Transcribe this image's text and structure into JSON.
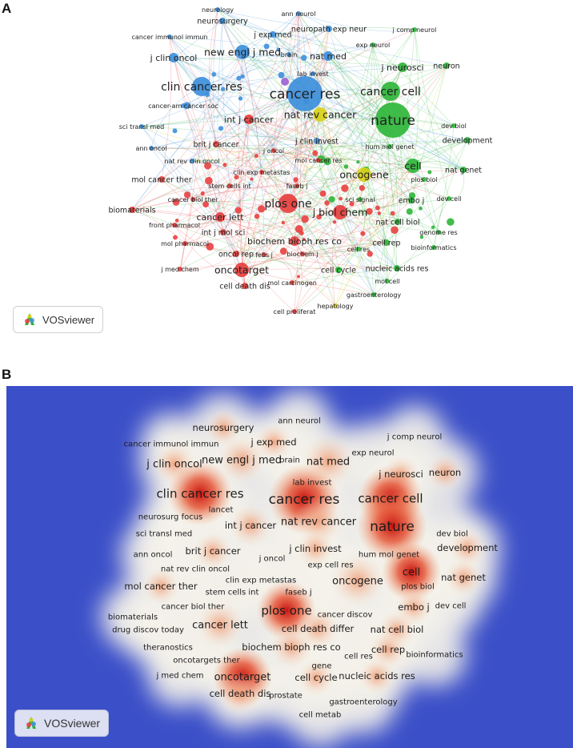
{
  "panel_a": {
    "label": "A",
    "logo_text": "VOSviewer",
    "clusters": {
      "red": "#e8403f",
      "green": "#2fb63a",
      "blue": "#3d8fdb",
      "yellow": "#d7d119",
      "purple": "#a46fd6"
    },
    "nodes": [
      {
        "label": "neurology",
        "c": "blue",
        "s": 2
      },
      {
        "label": "ann neurol",
        "c": "blue",
        "s": 2
      },
      {
        "label": "neurosurgery",
        "c": "blue",
        "s": 3
      },
      {
        "label": "j comp neurol",
        "c": "green",
        "s": 2
      },
      {
        "label": "cancer immunol immun",
        "c": "blue",
        "s": 2
      },
      {
        "label": "j exp med",
        "c": "blue",
        "s": 3
      },
      {
        "label": "neuropath exp neur",
        "c": "blue",
        "s": 3
      },
      {
        "label": "exp neurol",
        "c": "green",
        "s": 2
      },
      {
        "label": "new engl j med",
        "c": "blue",
        "s": 5
      },
      {
        "label": "brain",
        "c": "blue",
        "s": 2
      },
      {
        "label": "nat med",
        "c": "blue",
        "s": 4
      },
      {
        "label": "j clin oncol",
        "c": "blue",
        "s": 4
      },
      {
        "label": "j neurosci",
        "c": "green",
        "s": 4
      },
      {
        "label": "neuron",
        "c": "green",
        "s": 3
      },
      {
        "label": "lab invest",
        "c": "blue",
        "s": 2
      },
      {
        "label": "clin cancer res",
        "c": "blue",
        "s": 6
      },
      {
        "label": "cancer res",
        "c": "blue",
        "s": 8
      },
      {
        "label": "cancer cell",
        "c": "green",
        "s": 6
      },
      {
        "label": "cancer-am cancer soc",
        "c": "blue",
        "s": 2
      },
      {
        "label": "int j cancer",
        "c": "red",
        "s": 4
      },
      {
        "label": "nat rev cancer",
        "c": "yellow",
        "s": 5
      },
      {
        "label": "nature",
        "c": "green",
        "s": 8
      },
      {
        "label": "sci transl med",
        "c": "blue",
        "s": 2
      },
      {
        "label": "dev biol",
        "c": "green",
        "s": 2
      },
      {
        "label": "j clin invest",
        "c": "blue",
        "s": 3
      },
      {
        "label": "hum mol genet",
        "c": "green",
        "s": 2
      },
      {
        "label": "development",
        "c": "green",
        "s": 3
      },
      {
        "label": "ann oncol",
        "c": "blue",
        "s": 2
      },
      {
        "label": "brit j cancer",
        "c": "red",
        "s": 3
      },
      {
        "label": "j oncol",
        "c": "red",
        "s": 2
      },
      {
        "label": "nat rev clin oncol",
        "c": "blue",
        "s": 2
      },
      {
        "label": "mol cancer res",
        "c": "red",
        "s": 2
      },
      {
        "label": "oncogene",
        "c": "yellow",
        "s": 5
      },
      {
        "label": "cell",
        "c": "green",
        "s": 5
      },
      {
        "label": "nat genet",
        "c": "green",
        "s": 3
      },
      {
        "label": "clin exp metastas",
        "c": "red",
        "s": 2
      },
      {
        "label": "plos biol",
        "c": "green",
        "s": 2
      },
      {
        "label": "mol cancer ther",
        "c": "red",
        "s": 3
      },
      {
        "label": "stem cells int",
        "c": "red",
        "s": 2
      },
      {
        "label": "faseb j",
        "c": "red",
        "s": 2
      },
      {
        "label": "sci signal",
        "c": "green",
        "s": 2
      },
      {
        "label": "embo j",
        "c": "green",
        "s": 3
      },
      {
        "label": "dev cell",
        "c": "green",
        "s": 2
      },
      {
        "label": "cancer biol ther",
        "c": "red",
        "s": 2
      },
      {
        "label": "plos one",
        "c": "red",
        "s": 6
      },
      {
        "label": "j biol chem",
        "c": "red",
        "s": 5
      },
      {
        "label": "biomaterials",
        "c": "red",
        "s": 3
      },
      {
        "label": "cancer lett",
        "c": "red",
        "s": 4
      },
      {
        "label": "front pharmacol",
        "c": "red",
        "s": 2
      },
      {
        "label": "nat cell biol",
        "c": "green",
        "s": 3
      },
      {
        "label": "genome res",
        "c": "green",
        "s": 2
      },
      {
        "label": "int j mol sci",
        "c": "red",
        "s": 3
      },
      {
        "label": "cell rep",
        "c": "green",
        "s": 3
      },
      {
        "label": "mol pharmacol",
        "c": "red",
        "s": 2
      },
      {
        "label": "biochem bioph res co",
        "c": "red",
        "s": 4
      },
      {
        "label": "bioinformatics",
        "c": "green",
        "s": 2
      },
      {
        "label": "cell res",
        "c": "green",
        "s": 2
      },
      {
        "label": "oncol rep",
        "c": "red",
        "s": 3
      },
      {
        "label": "febs j",
        "c": "red",
        "s": 2
      },
      {
        "label": "biochem j",
        "c": "red",
        "s": 2
      },
      {
        "label": "j med chem",
        "c": "red",
        "s": 2
      },
      {
        "label": "oncotarget",
        "c": "red",
        "s": 5
      },
      {
        "label": "nucleic acids res",
        "c": "green",
        "s": 3
      },
      {
        "label": "cell cycle",
        "c": "green",
        "s": 3
      },
      {
        "label": "cell death dis",
        "c": "red",
        "s": 3
      },
      {
        "label": "mol carcinogen",
        "c": "red",
        "s": 2
      },
      {
        "label": "mol cell",
        "c": "green",
        "s": 2
      },
      {
        "label": "gastroenterology",
        "c": "green",
        "s": 2
      },
      {
        "label": "hepatology",
        "c": "yellow",
        "s": 2
      },
      {
        "label": "cell proliferat",
        "c": "red",
        "s": 2
      }
    ]
  },
  "panel_b": {
    "label": "B",
    "logo_text": "VOSviewer",
    "colors": {
      "background": "#3b4fc8",
      "hot": "#c9140e",
      "warm": "#f3a97e",
      "cool": "#f6f4e8"
    },
    "items": [
      {
        "label": "neurosurgery",
        "w": 0.4,
        "s": 3
      },
      {
        "label": "ann neurol",
        "w": 0.2,
        "s": 2
      },
      {
        "label": "cancer immunol immun",
        "w": 0.2,
        "s": 2
      },
      {
        "label": "j exp med",
        "w": 0.4,
        "s": 3
      },
      {
        "label": "j comp neurol",
        "w": 0.2,
        "s": 2
      },
      {
        "label": "exp neurol",
        "w": 0.2,
        "s": 2
      },
      {
        "label": "j clin oncol",
        "w": 0.5,
        "s": 4
      },
      {
        "label": "new engl j med",
        "w": 0.6,
        "s": 4
      },
      {
        "label": "brain",
        "w": 0.3,
        "s": 2
      },
      {
        "label": "nat med",
        "w": 0.7,
        "s": 4
      },
      {
        "label": "j neurosci",
        "w": 0.4,
        "s": 3
      },
      {
        "label": "neuron",
        "w": 0.4,
        "s": 3
      },
      {
        "label": "lab invest",
        "w": 0.3,
        "s": 2
      },
      {
        "label": "clin cancer res",
        "w": 0.9,
        "s": 5
      },
      {
        "label": "cancer res",
        "w": 1.0,
        "s": 6
      },
      {
        "label": "cancer cell",
        "w": 0.9,
        "s": 5
      },
      {
        "label": "lancet",
        "w": 0.3,
        "s": 2
      },
      {
        "label": "neurosurg focus",
        "w": 0.2,
        "s": 2
      },
      {
        "label": "int j cancer",
        "w": 0.5,
        "s": 3
      },
      {
        "label": "nat rev cancer",
        "w": 0.6,
        "s": 4
      },
      {
        "label": "nature",
        "w": 1.0,
        "s": 6
      },
      {
        "label": "sci transl med",
        "w": 0.2,
        "s": 2
      },
      {
        "label": "dev biol",
        "w": 0.2,
        "s": 2
      },
      {
        "label": "development",
        "w": 0.4,
        "s": 3
      },
      {
        "label": "ann oncol",
        "w": 0.3,
        "s": 2
      },
      {
        "label": "brit j cancer",
        "w": 0.4,
        "s": 3
      },
      {
        "label": "j clin invest",
        "w": 0.4,
        "s": 3
      },
      {
        "label": "hum mol genet",
        "w": 0.3,
        "s": 2
      },
      {
        "label": "j oncol",
        "w": 0.2,
        "s": 2
      },
      {
        "label": "nat rev clin oncol",
        "w": 0.2,
        "s": 2
      },
      {
        "label": "exp cell res",
        "w": 0.3,
        "s": 2
      },
      {
        "label": "cell",
        "w": 0.8,
        "s": 4
      },
      {
        "label": "clin exp metastas",
        "w": 0.2,
        "s": 2
      },
      {
        "label": "oncogene",
        "w": 0.7,
        "s": 4
      },
      {
        "label": "nat genet",
        "w": 0.4,
        "s": 3
      },
      {
        "label": "mol cancer ther",
        "w": 0.4,
        "s": 3
      },
      {
        "label": "stem cells int",
        "w": 0.3,
        "s": 2
      },
      {
        "label": "faseb j",
        "w": 0.3,
        "s": 2
      },
      {
        "label": "plos biol",
        "w": 0.3,
        "s": 2
      },
      {
        "label": "cancer biol ther",
        "w": 0.3,
        "s": 2
      },
      {
        "label": "embo j",
        "w": 0.4,
        "s": 3
      },
      {
        "label": "dev cell",
        "w": 0.2,
        "s": 2
      },
      {
        "label": "biomaterials",
        "w": 0.3,
        "s": 2
      },
      {
        "label": "plos one",
        "w": 0.8,
        "s": 5
      },
      {
        "label": "cancer discov",
        "w": 0.3,
        "s": 2
      },
      {
        "label": "drug discov today",
        "w": 0.2,
        "s": 2
      },
      {
        "label": "cancer lett",
        "w": 0.6,
        "s": 4
      },
      {
        "label": "cell death differ",
        "w": 0.5,
        "s": 3
      },
      {
        "label": "nat cell biol",
        "w": 0.4,
        "s": 3
      },
      {
        "label": "theranostics",
        "w": 0.2,
        "s": 2
      },
      {
        "label": "biochem bioph res co",
        "w": 0.5,
        "s": 3
      },
      {
        "label": "cell rep",
        "w": 0.4,
        "s": 3
      },
      {
        "label": "oncotargets ther",
        "w": 0.2,
        "s": 2
      },
      {
        "label": "cell res",
        "w": 0.3,
        "s": 2
      },
      {
        "label": "bioinformatics",
        "w": 0.3,
        "s": 2
      },
      {
        "label": "gene",
        "w": 0.2,
        "s": 2
      },
      {
        "label": "j med chem",
        "w": 0.3,
        "s": 2
      },
      {
        "label": "oncotarget",
        "w": 0.8,
        "s": 4
      },
      {
        "label": "cell cycle",
        "w": 0.4,
        "s": 3
      },
      {
        "label": "nucleic acids res",
        "w": 0.4,
        "s": 3
      },
      {
        "label": "cell death dis",
        "w": 0.5,
        "s": 3
      },
      {
        "label": "prostate",
        "w": 0.2,
        "s": 2
      },
      {
        "label": "gastroenterology",
        "w": 0.3,
        "s": 2
      },
      {
        "label": "cell metab",
        "w": 0.3,
        "s": 2
      }
    ]
  }
}
